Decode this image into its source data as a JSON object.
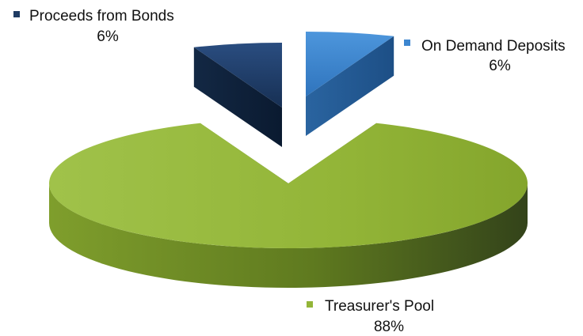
{
  "chart_data": {
    "type": "pie",
    "style": "3d-exploded",
    "legend_placement": "callout labels next to slices",
    "slices": [
      {
        "name": "Proceeds from Bonds",
        "value": 6,
        "label": "6%",
        "color": "#1f3b63"
      },
      {
        "name": "On Demand Deposits",
        "value": 6,
        "label": "6%",
        "color": "#3d86d0"
      },
      {
        "name": "Treasurer's Pool",
        "value": 88,
        "label": "88%",
        "color": "#93b538"
      }
    ]
  }
}
